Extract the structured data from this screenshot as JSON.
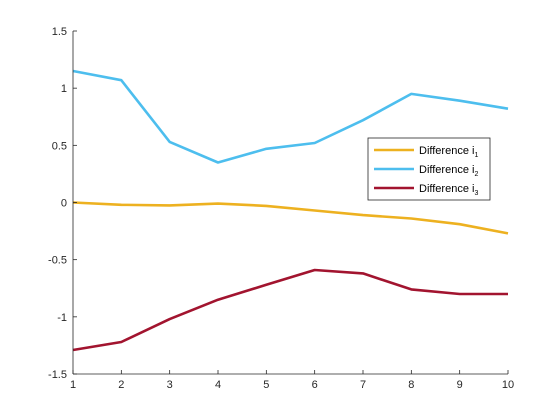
{
  "chart_data": {
    "type": "line",
    "title": "",
    "xlabel": "",
    "ylabel": "",
    "xlim": [
      1,
      10
    ],
    "ylim": [
      -1.5,
      1.5
    ],
    "x_ticks": [
      1,
      2,
      3,
      4,
      5,
      6,
      7,
      8,
      9,
      10
    ],
    "y_ticks": [
      -1.5,
      -1,
      -0.5,
      0,
      0.5,
      1,
      1.5
    ],
    "y_tick_labels": [
      "-1.5",
      "-1",
      "-0.5",
      "0",
      "0.5",
      "1",
      "1.5"
    ],
    "grid": false,
    "legend_position": "right",
    "x": [
      1,
      2,
      3,
      4,
      5,
      6,
      7,
      8,
      9,
      10
    ],
    "series": [
      {
        "name": "Difference i",
        "subscript": "1",
        "color": "#EDB120",
        "values": [
          0.0,
          -0.02,
          -0.025,
          -0.01,
          -0.03,
          -0.07,
          -0.11,
          -0.14,
          -0.19,
          -0.27
        ]
      },
      {
        "name": "Difference i",
        "subscript": "2",
        "color": "#4DBEEE",
        "values": [
          1.15,
          1.07,
          0.53,
          0.35,
          0.47,
          0.52,
          0.72,
          0.95,
          0.89,
          0.82
        ]
      },
      {
        "name": "Difference i",
        "subscript": "3",
        "color": "#A2142F",
        "values": [
          -1.29,
          -1.22,
          -1.02,
          -0.85,
          -0.72,
          -0.59,
          -0.62,
          -0.76,
          -0.8,
          -0.8
        ]
      }
    ]
  }
}
